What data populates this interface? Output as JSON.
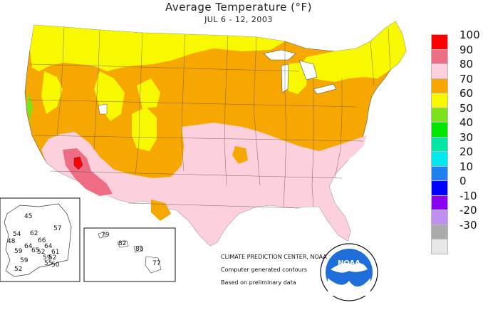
{
  "title": "Average Temperature (°F)",
  "subtitle": "JUL 6 - 12, 2003",
  "legend": [
    {
      "label": "100",
      "color": "#ff0000"
    },
    {
      "label": "90",
      "color": "#ee6d84"
    },
    {
      "label": "80",
      "color": "#fdd0de"
    },
    {
      "label": "70",
      "color": "#f7a800"
    },
    {
      "label": "60",
      "color": "#f8f800"
    },
    {
      "label": "50",
      "color": "#7ce21c"
    },
    {
      "label": "40",
      "color": "#00e600"
    },
    {
      "label": "30",
      "color": "#00e6a6"
    },
    {
      "label": "20",
      "color": "#00e8f0"
    },
    {
      "label": "10",
      "color": "#2080f0"
    },
    {
      "label": "0",
      "color": "#0000ff"
    },
    {
      "label": "-10",
      "color": "#8a00f0"
    },
    {
      "label": "-20",
      "color": "#c090f0"
    },
    {
      "label": "-30",
      "color": "#aaaaaa"
    },
    {
      "label": "",
      "color": "#e6e6e6"
    }
  ],
  "credits": {
    "center": "CLIMATE PREDICTION CENTER, NOAA",
    "line2": "Computer generated contours",
    "line3": "Based on preliminary data",
    "logo_text": "NOAA"
  },
  "alaska_values": [
    "45",
    "57",
    "54",
    "62",
    "66",
    "48",
    "64",
    "64",
    "59",
    "65",
    "52",
    "59",
    "61",
    "59",
    "52",
    "55",
    "50",
    "52"
  ],
  "hawaii_values": [
    "79",
    "82",
    "80",
    "77"
  ]
}
